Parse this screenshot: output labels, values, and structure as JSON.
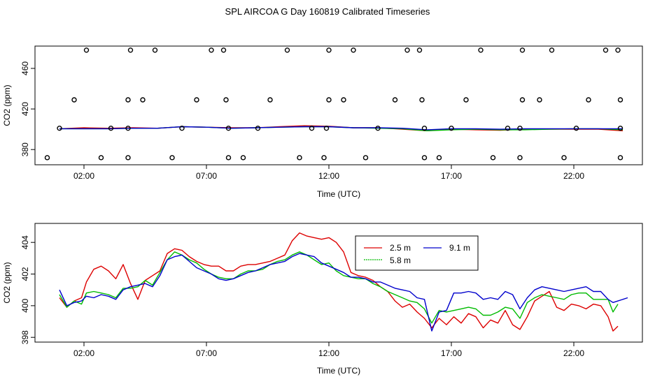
{
  "title": "SPL AIRCOA G  Day 160819  Calibrated Timeseries",
  "colors": {
    "s1": "#dd0000",
    "s2": "#00bb00",
    "s3": "#0000cc",
    "axis": "#000000"
  },
  "chart_data": [
    {
      "type": "line",
      "xlabel": "Time (UTC)",
      "ylabel": "CO2 (ppm)",
      "xlim": [
        0,
        24.8
      ],
      "ylim": [
        365,
        482
      ],
      "x_ticks": [
        2,
        7,
        12,
        17,
        22
      ],
      "x_tick_labels": [
        "02:00",
        "07:00",
        "12:00",
        "17:00",
        "22:00"
      ],
      "y_ticks": [
        380,
        420,
        460
      ],
      "y_tick_labels": [
        "380",
        "420",
        "460"
      ],
      "series": [
        {
          "x": [
            1,
            2,
            3,
            4,
            5,
            6,
            7,
            8,
            9,
            10,
            11,
            12,
            13,
            14,
            15,
            16,
            17,
            18,
            19,
            20,
            21,
            22,
            23,
            24
          ],
          "values": [
            400.5,
            401.5,
            401,
            401.5,
            401,
            402.5,
            402,
            401.5,
            401.5,
            402.5,
            403.5,
            403,
            401.5,
            401.5,
            400,
            398.5,
            400,
            399.5,
            399,
            400,
            400,
            400,
            400,
            398.5
          ]
        },
        {
          "x": [
            1,
            2,
            3,
            4,
            5,
            6,
            7,
            8,
            9,
            10,
            11,
            12,
            13,
            14,
            15,
            16,
            17,
            18,
            19,
            20,
            21,
            22,
            23,
            24
          ],
          "values": [
            400.5,
            400.5,
            400.5,
            401,
            401,
            402.5,
            402,
            401,
            401.5,
            402,
            402.5,
            402.5,
            401.5,
            401,
            400.5,
            398.5,
            399.5,
            400,
            399.5,
            399.5,
            400,
            400.5,
            400.5,
            399.5
          ]
        },
        {
          "x": [
            1,
            2,
            3,
            4,
            5,
            6,
            7,
            8,
            9,
            10,
            11,
            12,
            13,
            14,
            15,
            16,
            17,
            18,
            19,
            20,
            21,
            22,
            23,
            24
          ],
          "values": [
            400.5,
            400.5,
            400.5,
            401,
            401,
            402.5,
            402,
            401,
            401.5,
            402,
            402.5,
            402.5,
            401.5,
            401.5,
            401,
            399.5,
            400.5,
            400.5,
            400,
            400.5,
            400.5,
            400.5,
            400.5,
            400.5
          ]
        }
      ],
      "scatter": {
        "x": [
          2.1,
          3.9,
          4.9,
          7.2,
          7.7,
          10.3,
          12.0,
          13.0,
          15.2,
          15.7,
          18.2,
          19.9,
          21.1,
          23.3,
          23.8,
          1.6,
          3.8,
          4.4,
          6.6,
          7.8,
          9.6,
          12.0,
          12.6,
          14.7,
          15.8,
          17.6,
          19.9,
          20.6,
          22.6,
          23.9,
          1.0,
          3.1,
          3.8,
          6.0,
          7.9,
          9.1,
          11.3,
          11.9,
          14.0,
          15.9,
          17.0,
          19.3,
          19.8,
          22.1,
          23.9,
          0.5,
          2.7,
          3.8,
          5.6,
          7.9,
          8.5,
          10.8,
          11.8,
          13.5,
          15.9,
          16.5,
          18.7,
          19.8,
          21.6,
          23.9
        ],
        "y": [
          478,
          478,
          478,
          478,
          478,
          478,
          478,
          478,
          478,
          478,
          478,
          478,
          478,
          478,
          478,
          429,
          429,
          429,
          429,
          429,
          429,
          429,
          429,
          429,
          429,
          429,
          429,
          429,
          429,
          429,
          401,
          401,
          401,
          401,
          401,
          401,
          401,
          401,
          401,
          401,
          401,
          401,
          401,
          401,
          401,
          372,
          372,
          372,
          372,
          372,
          372,
          372,
          372,
          372,
          372,
          372,
          372,
          372,
          372,
          372
        ]
      }
    },
    {
      "type": "line",
      "xlabel": "Time (UTC)",
      "ylabel": "CO2 (ppm)",
      "xlim": [
        0,
        24.8
      ],
      "ylim": [
        397.7,
        405.2
      ],
      "x_ticks": [
        2,
        7,
        12,
        17,
        22
      ],
      "x_tick_labels": [
        "02:00",
        "07:00",
        "12:00",
        "17:00",
        "22:00"
      ],
      "y_ticks": [
        398,
        400,
        402,
        404
      ],
      "y_tick_labels": [
        "398",
        "400",
        "402",
        "404"
      ],
      "legend": {
        "position": "top-center",
        "items": [
          "2.5 m",
          "5.8 m",
          "9.1 m"
        ]
      },
      "series": [
        {
          "name": "2.5 m",
          "x": [
            1.0,
            1.3,
            1.6,
            1.9,
            2.1,
            2.4,
            2.7,
            3.0,
            3.3,
            3.6,
            3.9,
            4.2,
            4.5,
            4.8,
            5.1,
            5.4,
            5.7,
            6.0,
            6.3,
            6.6,
            6.9,
            7.2,
            7.5,
            7.8,
            8.1,
            8.4,
            8.7,
            9.0,
            9.3,
            9.6,
            9.9,
            10.2,
            10.5,
            10.8,
            11.1,
            11.4,
            11.7,
            12.0,
            12.3,
            12.6,
            12.9,
            13.2,
            13.5,
            13.8,
            14.1,
            14.4,
            14.7,
            15.0,
            15.3,
            15.6,
            15.9,
            16.2,
            16.5,
            16.8,
            17.1,
            17.4,
            17.7,
            18.0,
            18.3,
            18.6,
            18.9,
            19.2,
            19.5,
            19.8,
            20.1,
            20.4,
            20.7,
            21.0,
            21.3,
            21.6,
            21.9,
            22.2,
            22.5,
            22.8,
            23.1,
            23.4,
            23.6,
            23.8
          ],
          "values": [
            400.5,
            399.9,
            400.3,
            400.5,
            401.5,
            402.3,
            402.5,
            402.2,
            401.7,
            402.6,
            401.4,
            400.4,
            401.6,
            401.9,
            402.2,
            403.3,
            403.6,
            403.5,
            403.1,
            402.8,
            402.6,
            402.5,
            402.5,
            402.2,
            402.2,
            402.5,
            402.6,
            402.6,
            402.7,
            402.8,
            403.0,
            403.2,
            404.1,
            404.6,
            404.4,
            404.3,
            404.2,
            404.3,
            404.0,
            403.4,
            402.1,
            401.9,
            401.8,
            401.6,
            401.2,
            400.9,
            400.3,
            399.9,
            400.1,
            399.6,
            399.2,
            398.6,
            399.2,
            398.8,
            399.3,
            398.9,
            399.5,
            399.3,
            398.6,
            399.1,
            398.9,
            399.7,
            398.8,
            398.5,
            399.3,
            400.3,
            400.6,
            400.9,
            399.9,
            399.7,
            400.1,
            400.0,
            399.8,
            400.1,
            400.0,
            399.3,
            398.4,
            398.7
          ]
        },
        {
          "name": "5.8 m",
          "x": [
            1.0,
            1.3,
            1.6,
            1.9,
            2.1,
            2.4,
            2.7,
            3.0,
            3.3,
            3.6,
            3.9,
            4.2,
            4.5,
            4.8,
            5.1,
            5.4,
            5.7,
            6.0,
            6.3,
            6.6,
            6.9,
            7.2,
            7.5,
            7.8,
            8.1,
            8.4,
            8.7,
            9.0,
            9.3,
            9.6,
            9.9,
            10.2,
            10.5,
            10.8,
            11.1,
            11.4,
            11.7,
            12.0,
            12.3,
            12.6,
            12.9,
            13.2,
            13.5,
            13.8,
            14.1,
            14.4,
            14.7,
            15.0,
            15.3,
            15.6,
            15.9,
            16.2,
            16.5,
            16.8,
            17.1,
            17.4,
            17.7,
            18.0,
            18.3,
            18.6,
            18.9,
            19.2,
            19.5,
            19.8,
            20.1,
            20.4,
            20.7,
            21.0,
            21.3,
            21.6,
            21.9,
            22.2,
            22.5,
            22.8,
            23.1,
            23.4,
            23.6,
            23.8
          ],
          "values": [
            400.7,
            399.9,
            400.3,
            400.1,
            400.8,
            400.9,
            400.8,
            400.7,
            400.5,
            401.1,
            401.1,
            401.2,
            401.6,
            401.3,
            402.1,
            402.9,
            403.4,
            403.2,
            402.9,
            402.7,
            402.3,
            402.0,
            401.8,
            401.7,
            401.7,
            402.0,
            402.2,
            402.2,
            402.3,
            402.6,
            402.8,
            402.9,
            403.2,
            403.4,
            403.2,
            402.9,
            402.6,
            402.7,
            402.2,
            401.9,
            401.8,
            401.7,
            401.7,
            401.4,
            401.2,
            400.9,
            400.7,
            400.5,
            400.3,
            400.2,
            399.8,
            398.9,
            399.7,
            399.6,
            399.7,
            399.8,
            399.9,
            399.8,
            399.4,
            399.4,
            399.6,
            399.9,
            399.8,
            399.2,
            400.2,
            400.5,
            400.7,
            400.6,
            400.5,
            400.4,
            400.7,
            400.8,
            400.8,
            400.4,
            400.4,
            400.4,
            399.6,
            400.1
          ]
        },
        {
          "name": "9.1 m",
          "x": [
            1.0,
            1.3,
            1.6,
            1.9,
            2.1,
            2.4,
            2.7,
            3.0,
            3.3,
            3.6,
            3.9,
            4.2,
            4.5,
            4.8,
            5.1,
            5.4,
            5.7,
            6.0,
            6.3,
            6.6,
            6.9,
            7.2,
            7.5,
            7.8,
            8.1,
            8.4,
            8.7,
            9.0,
            9.3,
            9.6,
            9.9,
            10.2,
            10.5,
            10.8,
            11.1,
            11.4,
            11.7,
            12.0,
            12.3,
            12.6,
            12.9,
            13.2,
            13.5,
            13.8,
            14.1,
            14.4,
            14.7,
            15.0,
            15.3,
            15.6,
            15.9,
            16.2,
            16.5,
            16.8,
            17.1,
            17.4,
            17.7,
            18.0,
            18.3,
            18.6,
            18.9,
            19.2,
            19.5,
            19.8,
            20.1,
            20.4,
            20.7,
            21.0,
            21.3,
            21.6,
            21.9,
            22.2,
            22.5,
            22.8,
            23.1,
            23.4,
            23.6,
            23.8,
            24.2
          ],
          "values": [
            401.0,
            400.0,
            400.2,
            400.3,
            400.6,
            400.5,
            400.7,
            400.6,
            400.4,
            401.0,
            401.2,
            401.3,
            401.4,
            401.2,
            401.9,
            402.9,
            403.1,
            403.2,
            402.8,
            402.4,
            402.2,
            402.0,
            401.7,
            401.6,
            401.7,
            401.9,
            402.1,
            402.2,
            402.4,
            402.6,
            402.7,
            402.8,
            403.1,
            403.3,
            403.2,
            403.1,
            402.7,
            402.5,
            402.3,
            402.1,
            401.8,
            401.8,
            401.7,
            401.5,
            401.5,
            401.3,
            401.1,
            401.0,
            400.9,
            400.5,
            400.4,
            398.4,
            399.6,
            399.7,
            400.8,
            400.8,
            400.9,
            400.8,
            400.4,
            400.5,
            400.4,
            400.9,
            400.7,
            399.8,
            400.5,
            401.0,
            401.2,
            401.1,
            401.0,
            400.9,
            401.0,
            401.1,
            401.2,
            400.9,
            400.9,
            400.4,
            400.2,
            400.3,
            400.5
          ]
        }
      ]
    }
  ]
}
